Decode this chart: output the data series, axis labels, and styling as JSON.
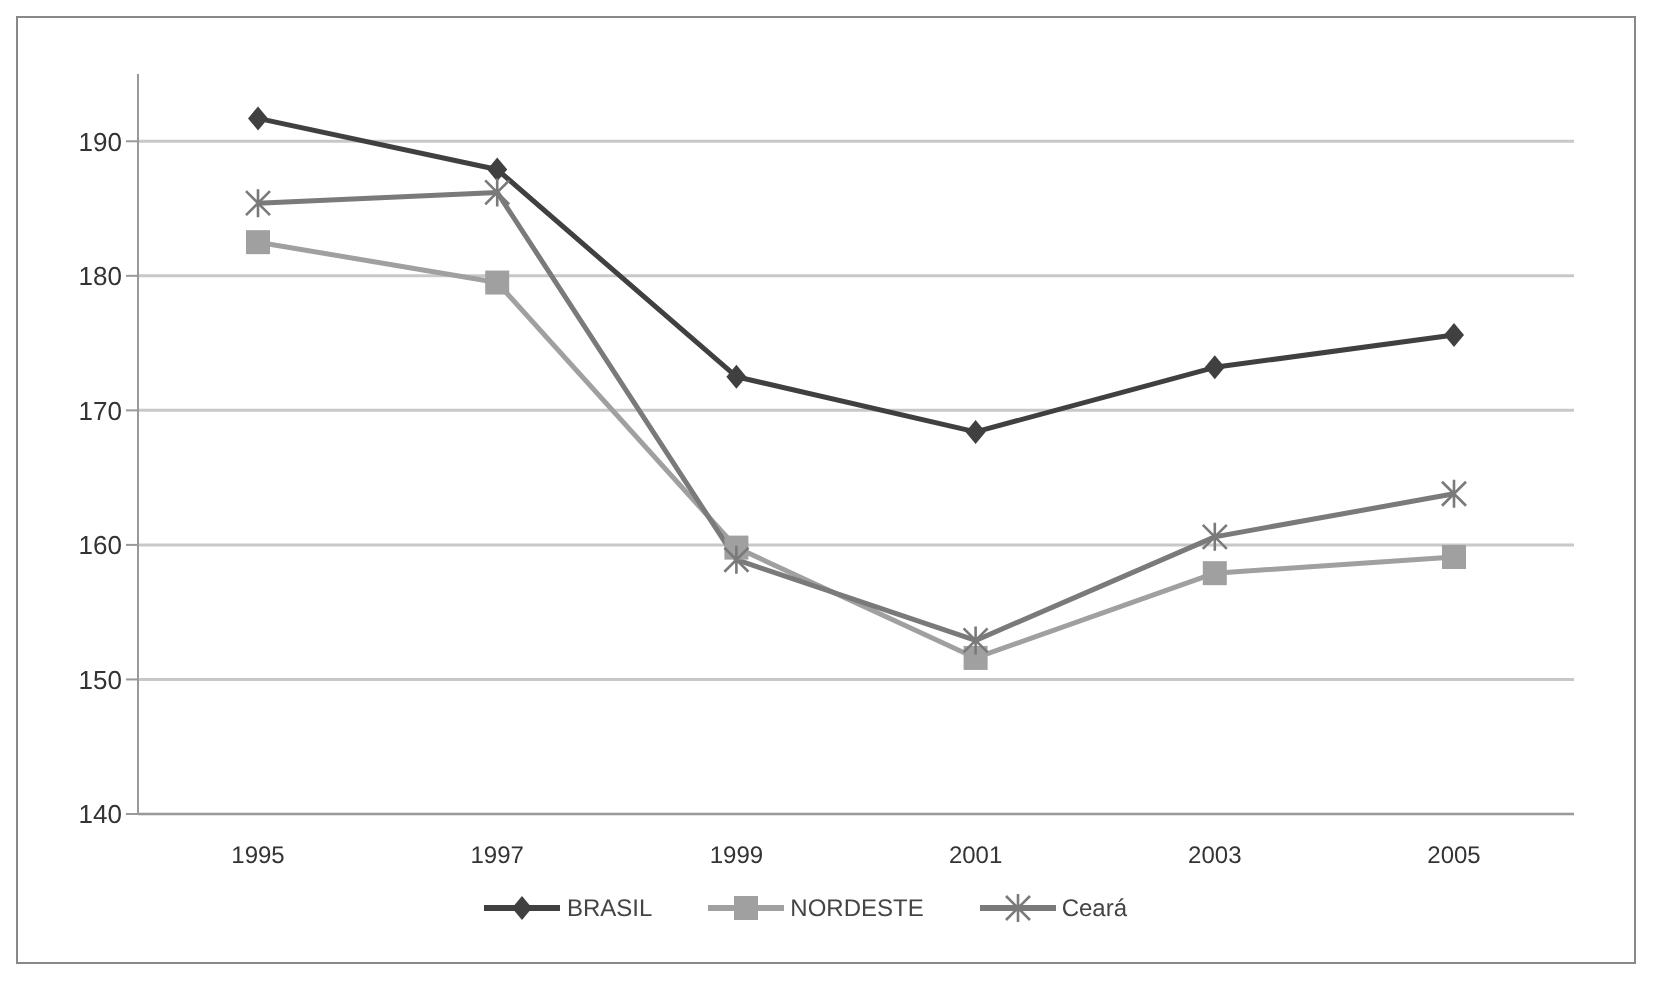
{
  "chart_data": {
    "type": "line",
    "categories": [
      "1995",
      "1997",
      "1999",
      "2001",
      "2003",
      "2005"
    ],
    "series": [
      {
        "name": "BRASIL",
        "color": "#404040",
        "marker": "diamond",
        "values": [
          191.7,
          187.9,
          172.5,
          168.4,
          173.2,
          175.6
        ]
      },
      {
        "name": "NORDESTE",
        "color": "#a0a0a0",
        "marker": "square",
        "values": [
          182.5,
          179.5,
          159.8,
          151.6,
          157.9,
          159.1
        ]
      },
      {
        "name": "Ceará",
        "color": "#7a7a7a",
        "marker": "cross",
        "values": [
          185.4,
          186.2,
          158.9,
          152.9,
          160.6,
          163.8
        ]
      }
    ],
    "ylim": [
      140,
      195
    ],
    "yticks": [
      140,
      150,
      160,
      170,
      180,
      190
    ],
    "grid": "y",
    "legend": "bottom"
  }
}
